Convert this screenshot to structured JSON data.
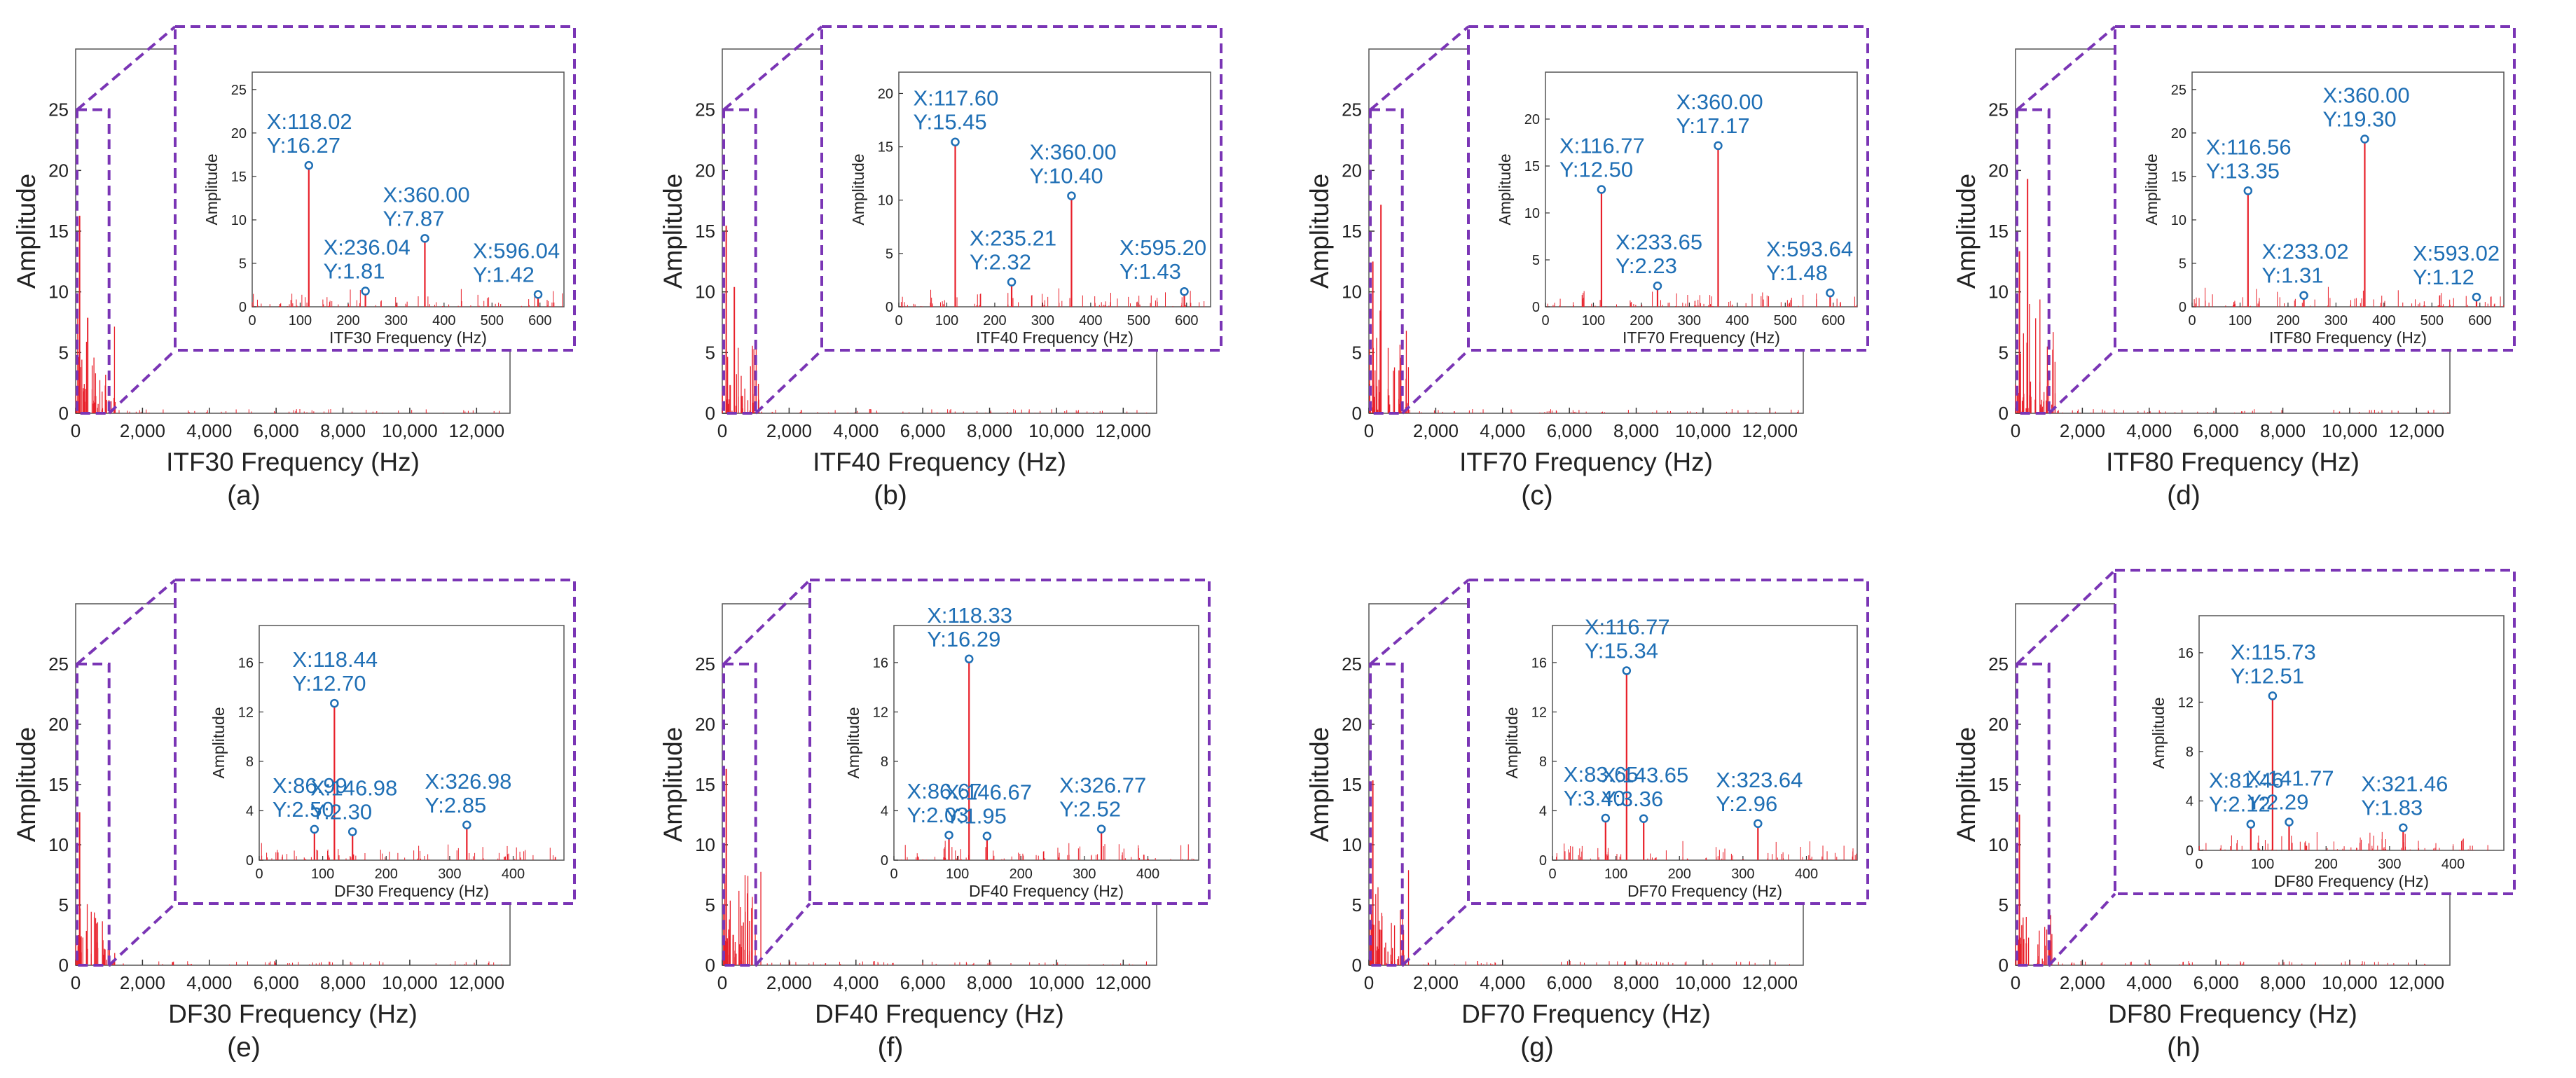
{
  "colors": {
    "signal": "#e8202a",
    "zoom_box": "#7a35b5",
    "annotation": "#1f6fb5",
    "axis": "#333333"
  },
  "chart_data": [
    {
      "type": "line",
      "caption": "(a)",
      "xlabel": "ITF30 Frequency (Hz)",
      "ylabel": "Amplitude",
      "x_ticks": [
        "0",
        "2,000",
        "4,000",
        "6,000",
        "8,000",
        "10,000",
        "12,000"
      ],
      "y_ticks": [
        "0",
        "5",
        "10",
        "15",
        "20",
        "25"
      ],
      "xlim": [
        0,
        13000
      ],
      "ylim": [
        0,
        30
      ],
      "zoom_range": [
        0,
        1000
      ],
      "inset": {
        "xlabel": "ITF30 Frequency (Hz)",
        "ylabel": "Amplitude",
        "x_ticks": [
          "0",
          "100",
          "200",
          "300",
          "400",
          "500",
          "600"
        ],
        "y_ticks": [
          "0",
          "5",
          "10",
          "15",
          "20",
          "25"
        ],
        "xlim": [
          0,
          650
        ],
        "ylim": [
          0,
          27
        ],
        "peaks": [
          {
            "x": 118.02,
            "y": 16.27,
            "label": "X:118.02\nY:16.27"
          },
          {
            "x": 236.04,
            "y": 1.81,
            "label": "X:236.04\nY:1.81"
          },
          {
            "x": 360.0,
            "y": 7.87,
            "label": "X:360.00\nY:7.87"
          },
          {
            "x": 596.04,
            "y": 1.42,
            "label": "X:596.04\nY:1.42"
          }
        ]
      }
    },
    {
      "type": "line",
      "caption": "(b)",
      "xlabel": "ITF40 Frequency (Hz)",
      "ylabel": "Amplitude",
      "x_ticks": [
        "0",
        "2,000",
        "4,000",
        "6,000",
        "8,000",
        "10,000",
        "12,000"
      ],
      "y_ticks": [
        "0",
        "5",
        "10",
        "15",
        "20",
        "25"
      ],
      "xlim": [
        0,
        13000
      ],
      "ylim": [
        0,
        30
      ],
      "zoom_range": [
        0,
        1000
      ],
      "inset": {
        "xlabel": "ITF40 Frequency (Hz)",
        "ylabel": "Amplitude",
        "x_ticks": [
          "0",
          "100",
          "200",
          "300",
          "400",
          "500",
          "600"
        ],
        "y_ticks": [
          "0",
          "5",
          "10",
          "15",
          "20"
        ],
        "xlim": [
          0,
          650
        ],
        "ylim": [
          0,
          22
        ],
        "peaks": [
          {
            "x": 117.6,
            "y": 15.45,
            "label": "X:117.60\nY:15.45"
          },
          {
            "x": 235.21,
            "y": 2.32,
            "label": "X:235.21\nY:2.32"
          },
          {
            "x": 360.0,
            "y": 10.4,
            "label": "X:360.00\nY:10.40"
          },
          {
            "x": 595.2,
            "y": 1.43,
            "label": "X:595.20\nY:1.43"
          }
        ]
      }
    },
    {
      "type": "line",
      "caption": "(c)",
      "xlabel": "ITF70 Frequency (Hz)",
      "ylabel": "Amplitude",
      "x_ticks": [
        "0",
        "2,000",
        "4,000",
        "6,000",
        "8,000",
        "10,000",
        "12,000"
      ],
      "y_ticks": [
        "0",
        "5",
        "10",
        "15",
        "20",
        "25"
      ],
      "xlim": [
        0,
        13000
      ],
      "ylim": [
        0,
        30
      ],
      "zoom_range": [
        0,
        1000
      ],
      "inset": {
        "xlabel": "ITF70 Frequency (Hz)",
        "ylabel": "Amplitude",
        "x_ticks": [
          "0",
          "100",
          "200",
          "300",
          "400",
          "500",
          "600"
        ],
        "y_ticks": [
          "0",
          "5",
          "10",
          "15",
          "20"
        ],
        "xlim": [
          0,
          650
        ],
        "ylim": [
          0,
          25
        ],
        "peaks": [
          {
            "x": 116.77,
            "y": 12.5,
            "label": "X:116.77\nY:12.50"
          },
          {
            "x": 233.65,
            "y": 2.23,
            "label": "X:233.65\nY:2.23"
          },
          {
            "x": 360.0,
            "y": 17.17,
            "label": "X:360.00\nY:17.17"
          },
          {
            "x": 593.64,
            "y": 1.48,
            "label": "X:593.64\nY:1.48"
          }
        ]
      }
    },
    {
      "type": "line",
      "caption": "(d)",
      "xlabel": "ITF80 Frequency (Hz)",
      "ylabel": "Amplitude",
      "x_ticks": [
        "0",
        "2,000",
        "4,000",
        "6,000",
        "8,000",
        "10,000",
        "12,000"
      ],
      "y_ticks": [
        "0",
        "5",
        "10",
        "15",
        "20",
        "25"
      ],
      "xlim": [
        0,
        13000
      ],
      "ylim": [
        0,
        30
      ],
      "zoom_range": [
        0,
        1000
      ],
      "inset": {
        "xlabel": "ITF80 Frequency (Hz)",
        "ylabel": "Amplitude",
        "x_ticks": [
          "0",
          "100",
          "200",
          "300",
          "400",
          "500",
          "600"
        ],
        "y_ticks": [
          "0",
          "5",
          "10",
          "15",
          "20",
          "25"
        ],
        "xlim": [
          0,
          650
        ],
        "ylim": [
          0,
          27
        ],
        "peaks": [
          {
            "x": 116.56,
            "y": 13.35,
            "label": "X:116.56\nY:13.35"
          },
          {
            "x": 233.02,
            "y": 1.31,
            "label": "X:233.02\nY:1.31"
          },
          {
            "x": 360.0,
            "y": 19.3,
            "label": "X:360.00\nY:19.30"
          },
          {
            "x": 593.02,
            "y": 1.12,
            "label": "X:593.02\nY:1.12"
          }
        ]
      }
    },
    {
      "type": "line",
      "caption": "(e)",
      "xlabel": "DF30 Frequency (Hz)",
      "ylabel": "Amplitude",
      "x_ticks": [
        "0",
        "2,000",
        "4,000",
        "6,000",
        "8,000",
        "10,000",
        "12,000"
      ],
      "y_ticks": [
        "0",
        "5",
        "10",
        "15",
        "20",
        "25"
      ],
      "xlim": [
        0,
        13000
      ],
      "ylim": [
        0,
        30
      ],
      "zoom_range": [
        0,
        1000
      ],
      "inset": {
        "xlabel": "DF30 Frequency (Hz)",
        "ylabel": "Amplitude",
        "x_ticks": [
          "0",
          "100",
          "200",
          "300",
          "400"
        ],
        "y_ticks": [
          "0",
          "4",
          "8",
          "12",
          "16"
        ],
        "xlim": [
          0,
          480
        ],
        "ylim": [
          0,
          19
        ],
        "peaks": [
          {
            "x": 86.99,
            "y": 2.5,
            "label": "X:86.99\nY:2.50"
          },
          {
            "x": 118.44,
            "y": 12.7,
            "label": "X:118.44\nY:12.70"
          },
          {
            "x": 146.98,
            "y": 2.3,
            "label": "X:146.98\nY:2.30"
          },
          {
            "x": 326.98,
            "y": 2.85,
            "label": "X:326.98\nY:2.85"
          }
        ]
      }
    },
    {
      "type": "line",
      "caption": "(f)",
      "xlabel": "DF40 Frequency (Hz)",
      "ylabel": "Amplitude",
      "x_ticks": [
        "0",
        "2,000",
        "4,000",
        "6,000",
        "8,000",
        "10,000",
        "12,000"
      ],
      "y_ticks": [
        "0",
        "5",
        "10",
        "15",
        "20",
        "25"
      ],
      "xlim": [
        0,
        13000
      ],
      "ylim": [
        0,
        30
      ],
      "zoom_range": [
        0,
        1000
      ],
      "inset": {
        "xlabel": "DF40 Frequency (Hz)",
        "ylabel": "Amplitude",
        "x_ticks": [
          "0",
          "100",
          "200",
          "300",
          "400"
        ],
        "y_ticks": [
          "0",
          "4",
          "8",
          "12",
          "16"
        ],
        "xlim": [
          0,
          480
        ],
        "ylim": [
          0,
          19
        ],
        "peaks": [
          {
            "x": 86.67,
            "y": 2.03,
            "label": "X:86.67\nY:2.03"
          },
          {
            "x": 118.33,
            "y": 16.29,
            "label": "X:118.33\nY:16.29"
          },
          {
            "x": 146.67,
            "y": 1.95,
            "label": "X:146.67\nY:1.95"
          },
          {
            "x": 326.77,
            "y": 2.52,
            "label": "X:326.77\nY:2.52"
          }
        ]
      }
    },
    {
      "type": "line",
      "caption": "(g)",
      "xlabel": "DF70 Frequency (Hz)",
      "ylabel": "Amplitude",
      "x_ticks": [
        "0",
        "2,000",
        "4,000",
        "6,000",
        "8,000",
        "10,000",
        "12,000"
      ],
      "y_ticks": [
        "0",
        "5",
        "10",
        "15",
        "20",
        "25"
      ],
      "xlim": [
        0,
        13000
      ],
      "ylim": [
        0,
        30
      ],
      "zoom_range": [
        0,
        1000
      ],
      "inset": {
        "xlabel": "DF70 Frequency (Hz)",
        "ylabel": "Amplitude",
        "x_ticks": [
          "0",
          "100",
          "200",
          "300",
          "400"
        ],
        "y_ticks": [
          "0",
          "4",
          "8",
          "12",
          "16"
        ],
        "xlim": [
          0,
          480
        ],
        "ylim": [
          0,
          19
        ],
        "peaks": [
          {
            "x": 83.65,
            "y": 3.4,
            "label": "X:83.65\nY:3.40"
          },
          {
            "x": 116.77,
            "y": 15.34,
            "label": "X:116.77\nY:15.34"
          },
          {
            "x": 143.65,
            "y": 3.36,
            "label": "X:143.65\nY:3.36"
          },
          {
            "x": 323.64,
            "y": 2.96,
            "label": "X:323.64\nY:2.96"
          }
        ]
      }
    },
    {
      "type": "line",
      "caption": "(h)",
      "xlabel": "DF80 Frequency (Hz)",
      "ylabel": "Amplitude",
      "x_ticks": [
        "0",
        "2,000",
        "4,000",
        "6,000",
        "8,000",
        "10,000",
        "12,000"
      ],
      "y_ticks": [
        "0",
        "5",
        "10",
        "15",
        "20",
        "25"
      ],
      "xlim": [
        0,
        13000
      ],
      "ylim": [
        0,
        30
      ],
      "zoom_range": [
        0,
        1000
      ],
      "inset": {
        "xlabel": "DF80 Frequency (Hz)",
        "ylabel": "Amplitude",
        "x_ticks": [
          "0",
          "100",
          "200",
          "300",
          "400"
        ],
        "y_ticks": [
          "0",
          "4",
          "8",
          "12",
          "16"
        ],
        "xlim": [
          0,
          480
        ],
        "ylim": [
          0,
          19
        ],
        "peaks": [
          {
            "x": 81.46,
            "y": 2.12,
            "label": "X:81.46\nY:2.12"
          },
          {
            "x": 115.73,
            "y": 12.51,
            "label": "X:115.73\nY:12.51"
          },
          {
            "x": 141.77,
            "y": 2.29,
            "label": "X:141.77\nY:2.29"
          },
          {
            "x": 321.46,
            "y": 1.83,
            "label": "X:321.46\nY:1.83"
          }
        ]
      }
    }
  ]
}
